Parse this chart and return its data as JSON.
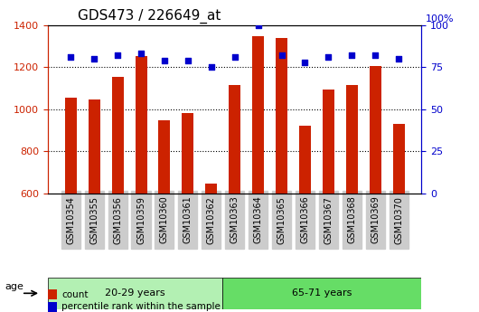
{
  "title": "GDS473 / 226649_at",
  "samples": [
    "GSM10354",
    "GSM10355",
    "GSM10356",
    "GSM10359",
    "GSM10360",
    "GSM10361",
    "GSM10362",
    "GSM10363",
    "GSM10364",
    "GSM10365",
    "GSM10366",
    "GSM10367",
    "GSM10368",
    "GSM10369",
    "GSM10370"
  ],
  "counts": [
    1055,
    1048,
    1155,
    1253,
    947,
    983,
    647,
    1113,
    1348,
    1340,
    923,
    1092,
    1113,
    1205,
    930
  ],
  "percentiles": [
    81,
    80,
    82,
    83,
    79,
    79,
    75,
    81,
    100,
    82,
    78,
    81,
    82,
    82,
    80
  ],
  "group1_label": "20-29 years",
  "group1_samples": 7,
  "group2_label": "65-71 years",
  "group2_samples": 8,
  "age_label": "age",
  "ylim_left": [
    600,
    1400
  ],
  "ylim_right": [
    0,
    100
  ],
  "yticks_left": [
    600,
    800,
    1000,
    1200,
    1400
  ],
  "yticks_right": [
    0,
    25,
    50,
    75,
    100
  ],
  "bar_color": "#cc2200",
  "dot_color": "#0000cc",
  "group1_bg": "#b3f0b3",
  "group2_bg": "#66dd66",
  "tick_bg": "#cccccc",
  "legend_count_label": "count",
  "legend_pct_label": "percentile rank within the sample",
  "bar_width": 0.5
}
